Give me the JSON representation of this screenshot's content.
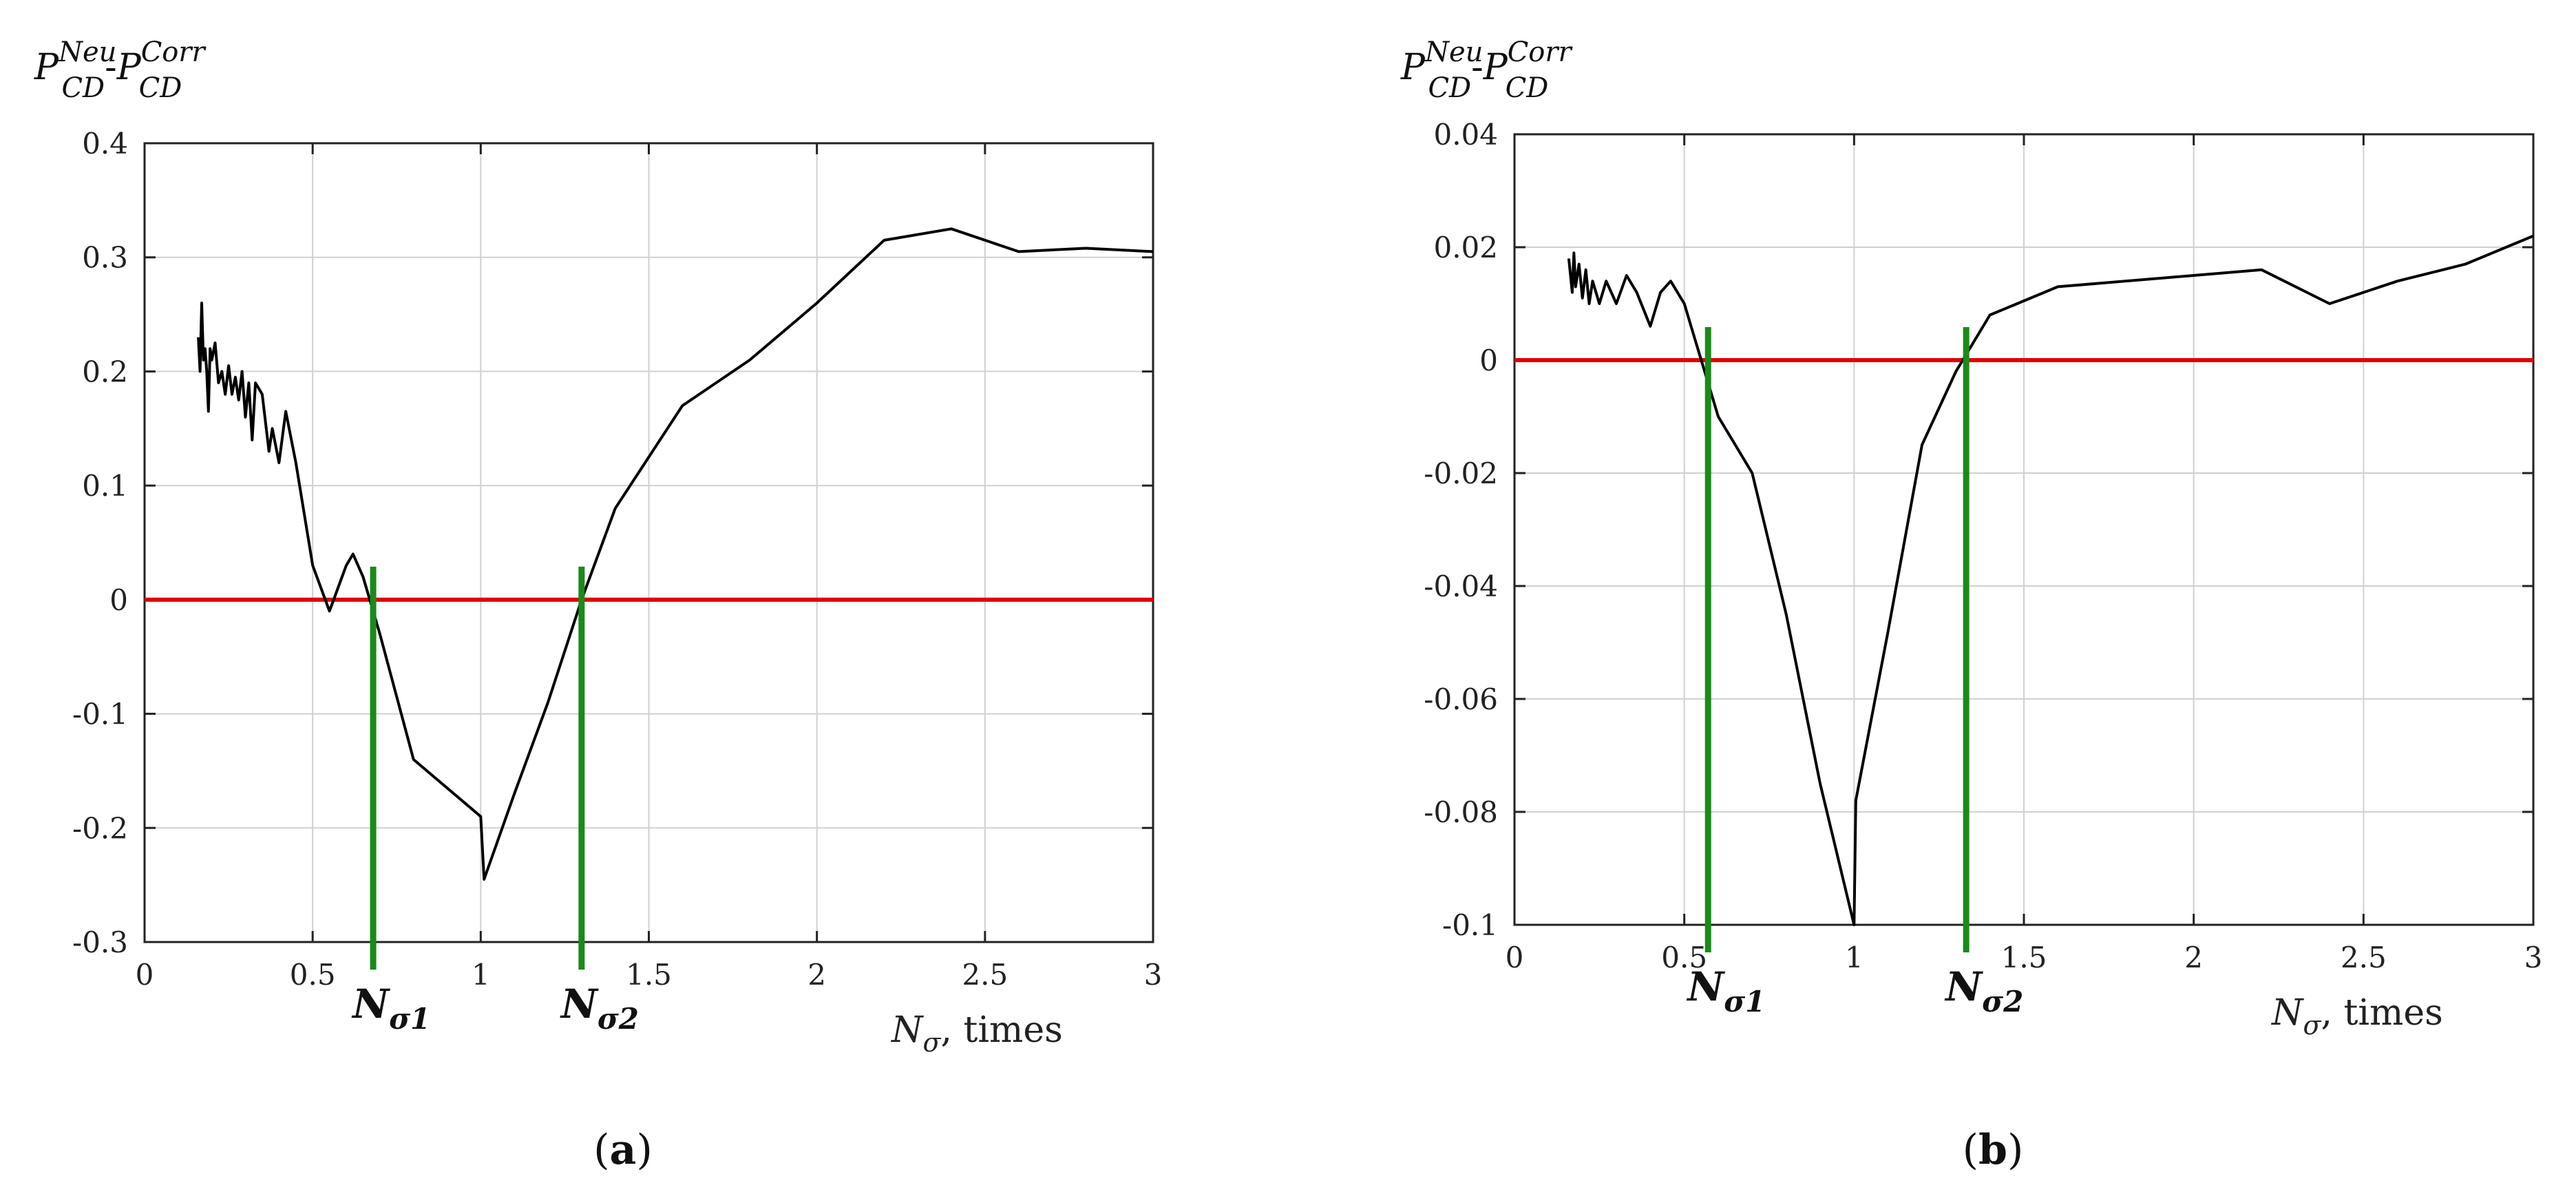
{
  "chart_data": [
    {
      "type": "line",
      "panel_label": "(a)",
      "ylabel": {
        "main1": "P",
        "sup1": "Neu",
        "sub1": "CD",
        "dash": "-",
        "main2": "P",
        "sup2": "Corr",
        "sub2": "CD"
      },
      "xlabel": {
        "main": "N",
        "sub": "σ",
        "rest": ", times"
      },
      "xlim": [
        0,
        3
      ],
      "ylim": [
        -0.3,
        0.4
      ],
      "xticks": [
        0,
        0.5,
        1,
        1.5,
        2,
        2.5,
        3
      ],
      "xtick_labels": [
        "0",
        "0.5",
        "1",
        "1.5",
        "2",
        "2.5",
        "3"
      ],
      "yticks": [
        -0.3,
        -0.2,
        -0.1,
        0,
        0.1,
        0.2,
        0.3,
        0.4
      ],
      "ytick_labels": [
        "-0.3",
        "-0.2",
        "-0.1",
        "0",
        "0.1",
        "0.2",
        "0.3",
        "0.4"
      ],
      "grid": true,
      "reference_line": {
        "y": 0,
        "color": "#e00000"
      },
      "markers": [
        {
          "x": 0.68,
          "label_main": "N",
          "label_sub": "σ1",
          "color": "#1a8a1a"
        },
        {
          "x": 1.3,
          "label_main": "N",
          "label_sub": "σ2",
          "color": "#1a8a1a"
        }
      ],
      "series": [
        {
          "color": "#000000",
          "x": [
            0.16,
            0.165,
            0.17,
            0.175,
            0.18,
            0.185,
            0.19,
            0.195,
            0.2,
            0.21,
            0.22,
            0.23,
            0.24,
            0.25,
            0.26,
            0.27,
            0.28,
            0.29,
            0.3,
            0.31,
            0.32,
            0.33,
            0.35,
            0.37,
            0.38,
            0.4,
            0.42,
            0.45,
            0.5,
            0.55,
            0.6,
            0.62,
            0.65,
            0.7,
            0.8,
            1.0,
            1.01,
            1.1,
            1.2,
            1.3,
            1.4,
            1.6,
            1.8,
            2.0,
            2.2,
            2.4,
            2.6,
            2.8,
            3.0
          ],
          "y": [
            0.23,
            0.2,
            0.26,
            0.21,
            0.22,
            0.2,
            0.165,
            0.22,
            0.21,
            0.225,
            0.19,
            0.2,
            0.18,
            0.205,
            0.18,
            0.195,
            0.175,
            0.2,
            0.16,
            0.19,
            0.14,
            0.19,
            0.18,
            0.13,
            0.15,
            0.12,
            0.165,
            0.12,
            0.03,
            -0.01,
            0.03,
            0.04,
            0.02,
            -0.03,
            -0.14,
            -0.19,
            -0.245,
            -0.17,
            -0.09,
            0.0,
            0.08,
            0.17,
            0.21,
            0.26,
            0.315,
            0.325,
            0.305,
            0.308,
            0.305
          ]
        }
      ]
    },
    {
      "type": "line",
      "panel_label": "(b)",
      "ylabel": {
        "main1": "P",
        "sup1": "Neu",
        "sub1": "CD",
        "dash": "-",
        "main2": "P",
        "sup2": "Corr",
        "sub2": "CD"
      },
      "xlabel": {
        "main": "N",
        "sub": "σ",
        "rest": ", times"
      },
      "xlim": [
        0,
        3
      ],
      "ylim": [
        -0.1,
        0.04
      ],
      "xticks": [
        0,
        0.5,
        1,
        1.5,
        2,
        2.5,
        3
      ],
      "xtick_labels": [
        "0",
        "0.5",
        "1",
        "1.5",
        "2",
        "2.5",
        "3"
      ],
      "yticks": [
        -0.1,
        -0.08,
        -0.06,
        -0.04,
        -0.02,
        0,
        0.02,
        0.04
      ],
      "ytick_labels": [
        "-0.1",
        "-0.08",
        "-0.06",
        "-0.04",
        "-0.02",
        "0",
        "0.02",
        "0.04"
      ],
      "grid": true,
      "reference_line": {
        "y": 0,
        "color": "#e00000"
      },
      "markers": [
        {
          "x": 0.57,
          "label_main": "N",
          "label_sub": "σ1",
          "color": "#1a8a1a"
        },
        {
          "x": 1.33,
          "label_main": "N",
          "label_sub": "σ2",
          "color": "#1a8a1a"
        }
      ],
      "series": [
        {
          "color": "#000000",
          "x": [
            0.16,
            0.17,
            0.175,
            0.18,
            0.19,
            0.2,
            0.21,
            0.22,
            0.23,
            0.25,
            0.27,
            0.3,
            0.33,
            0.36,
            0.4,
            0.43,
            0.46,
            0.5,
            0.52,
            0.55,
            0.6,
            0.65,
            0.7,
            0.8,
            0.9,
            1.0,
            1.005,
            1.1,
            1.2,
            1.3,
            1.4,
            1.6,
            2.0,
            2.2,
            2.4,
            2.6,
            2.8,
            3.0
          ],
          "y": [
            0.018,
            0.012,
            0.019,
            0.013,
            0.017,
            0.011,
            0.016,
            0.01,
            0.014,
            0.01,
            0.014,
            0.01,
            0.015,
            0.012,
            0.006,
            0.012,
            0.014,
            0.01,
            0.006,
            0.0,
            -0.01,
            -0.015,
            -0.02,
            -0.045,
            -0.075,
            -0.1,
            -0.078,
            -0.048,
            -0.015,
            -0.002,
            0.008,
            0.013,
            0.015,
            0.016,
            0.01,
            0.014,
            0.017,
            0.022
          ]
        }
      ]
    }
  ]
}
